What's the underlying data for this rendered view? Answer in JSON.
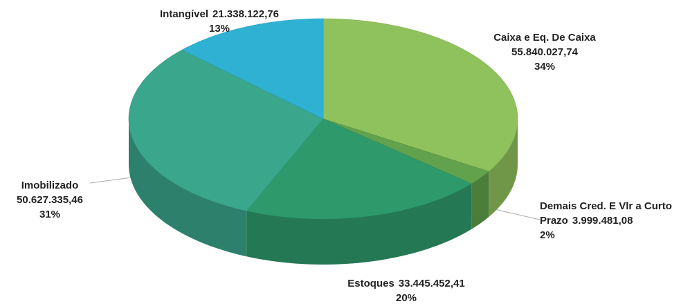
{
  "chart_data": {
    "type": "pie3d",
    "categories": [
      "Caixa e Eq. De Caixa",
      "Demais Cred. E Vlr a Curto Prazo",
      "Estoques",
      "Imobilizado",
      "Intangível"
    ],
    "values": [
      55840027.74,
      3999481.08,
      33445452.41,
      50627335.46,
      21338122.76
    ],
    "value_labels": [
      "55.840.027,74",
      "3.999.481,08",
      "33.445.452,41",
      "50.627.335,46",
      "21.338.122,76"
    ],
    "percents": [
      34,
      2,
      20,
      31,
      13
    ],
    "percent_labels": [
      "34%",
      "2%",
      "20%",
      "31%",
      "13%"
    ],
    "colors": [
      "#8fc25c",
      "#62a24c",
      "#2e9a6c",
      "#3aa68b",
      "#2fb1d3"
    ]
  }
}
